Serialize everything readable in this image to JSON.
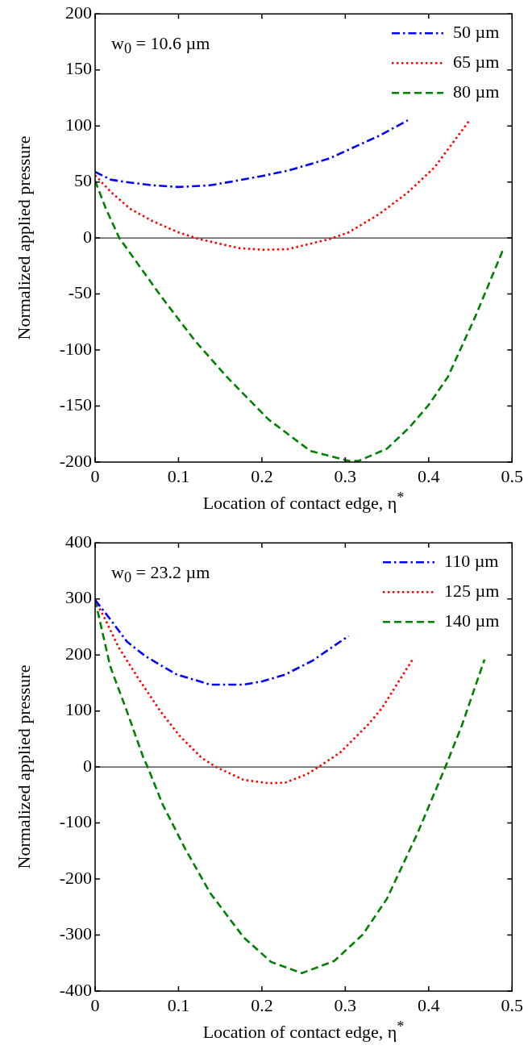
{
  "chart_data": [
    {
      "type": "line",
      "xlabel": "Location of contact edge, η$^{*}$",
      "ylabel": "Normalized applied pressure",
      "annotations": [
        "w$_{0}$ = 10.6 µm"
      ],
      "xlim": [
        0,
        0.5
      ],
      "xticks": [
        0,
        0.1,
        0.2,
        0.3,
        0.4,
        0.5
      ],
      "ylim": [
        -200,
        200
      ],
      "yticks": [
        -200,
        -150,
        -100,
        -50,
        0,
        50,
        100,
        150,
        200
      ],
      "grid": false,
      "legend": "top right",
      "marker": "none",
      "ref_lines": [
        {
          "axis": "y",
          "value": 0,
          "color": "#000000"
        }
      ],
      "series": [
        {
          "name": "50 µm",
          "color": "#0000ff",
          "line_style": "dashdot",
          "x": [
            0,
            0.019,
            0.041,
            0.069,
            0.1,
            0.138,
            0.165,
            0.198,
            0.231,
            0.281,
            0.34,
            0.375
          ],
          "values": [
            59,
            52,
            49.5,
            47,
            45.5,
            47,
            50.5,
            55,
            60,
            71,
            91,
            105
          ]
        },
        {
          "name": "65 µm",
          "color": "#ff0000",
          "line_style": "dotted",
          "x": [
            0,
            0.019,
            0.042,
            0.069,
            0.1,
            0.125,
            0.172,
            0.201,
            0.231,
            0.281,
            0.304,
            0.34,
            0.374,
            0.407,
            0.448
          ],
          "values": [
            56,
            41,
            26,
            15,
            5,
            -1,
            -9,
            -10.5,
            -10,
            -1,
            5,
            21,
            40,
            63,
            104
          ]
        },
        {
          "name": "80 µm",
          "color": "#008000",
          "line_style": "dashed",
          "x": [
            0,
            0.013,
            0.029,
            0.079,
            0.119,
            0.158,
            0.208,
            0.258,
            0.304,
            0.316,
            0.35,
            0.377,
            0.4,
            0.423,
            0.456,
            0.49
          ],
          "values": [
            51,
            26,
            0,
            -52,
            -91,
            -124,
            -162,
            -190,
            -199,
            -199,
            -188,
            -169,
            -149,
            -124,
            -70,
            -9
          ]
        }
      ]
    },
    {
      "type": "line",
      "xlabel": "Location of contact edge, η$^{*}$",
      "ylabel": "Normalized applied pressure",
      "annotations": [
        "w$_{0}$ = 23.2 µm"
      ],
      "xlim": [
        0,
        0.5
      ],
      "xticks": [
        0,
        0.1,
        0.2,
        0.3,
        0.4,
        0.5
      ],
      "ylim": [
        -400,
        400
      ],
      "yticks": [
        -400,
        -300,
        -200,
        -100,
        0,
        100,
        200,
        300,
        400
      ],
      "grid": false,
      "legend": "top right",
      "marker": "none",
      "ref_lines": [
        {
          "axis": "y",
          "value": 0,
          "color": "#000000"
        }
      ],
      "series": [
        {
          "name": "110 µm",
          "color": "#0000ff",
          "line_style": "dashdot",
          "x": [
            0,
            0.018,
            0.038,
            0.061,
            0.098,
            0.138,
            0.178,
            0.201,
            0.228,
            0.261,
            0.304
          ],
          "values": [
            298,
            264,
            224,
            197,
            165,
            147,
            147,
            153,
            165,
            190,
            234
          ]
        },
        {
          "name": "125 µm",
          "color": "#ff0000",
          "line_style": "dotted",
          "x": [
            0,
            0.012,
            0.028,
            0.051,
            0.078,
            0.101,
            0.128,
            0.145,
            0.178,
            0.208,
            0.228,
            0.254,
            0.268,
            0.294,
            0.327,
            0.344,
            0.382
          ],
          "values": [
            298,
            264,
            214,
            160,
            100,
            56,
            16,
            0,
            -23,
            -29,
            -28,
            -13,
            0,
            26,
            75,
            105,
            195
          ]
        },
        {
          "name": "140 µm",
          "color": "#008000",
          "line_style": "dashed",
          "x": [
            0,
            0.018,
            0.038,
            0.058,
            0.063,
            0.081,
            0.108,
            0.138,
            0.178,
            0.211,
            0.248,
            0.287,
            0.321,
            0.35,
            0.387,
            0.42,
            0.44,
            0.467
          ],
          "values": [
            298,
            180,
            100,
            16,
            0,
            -67,
            -146,
            -225,
            -304,
            -348,
            -368,
            -346,
            -299,
            -235,
            -117,
            0,
            75,
            192
          ]
        }
      ]
    }
  ]
}
